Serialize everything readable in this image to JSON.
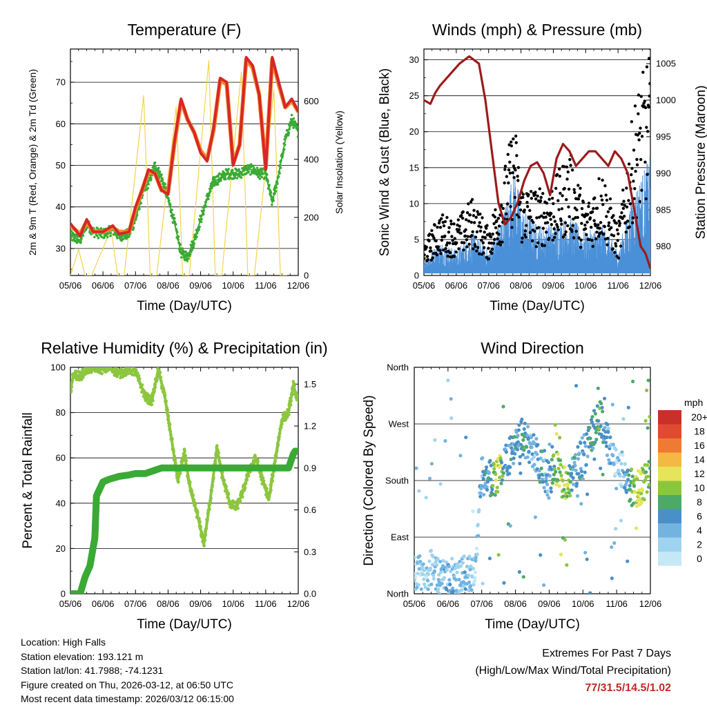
{
  "charts": {
    "temperature": {
      "title": "Temperature (F)",
      "xlabel": "Time (Day/UTC)",
      "ylabel_left": "2m & 9m T (Red, Orange) & 2m Td (Green)",
      "ylabel_right": "Solar Insolation (Yellow)"
    },
    "winds": {
      "title": "Winds (mph) & Pressure (mb)",
      "xlabel": "Time (Day/UTC)",
      "ylabel_left": "Sonic Wind & Gust (Blue, Black)",
      "ylabel_right": "Station Pressure (Maroon)"
    },
    "humidity": {
      "title": "Relative Humidity (%) & Precipitation (in)",
      "xlabel": "Time (Day/UTC)",
      "ylabel_left": "Percent & Total Rainfall"
    },
    "direction": {
      "title": "Wind Direction",
      "xlabel": "Time (Day/UTC)",
      "ylabel_left": "Direction (Colored By Speed)",
      "legend_title": "mph",
      "legend_labels": [
        "20+",
        "18",
        "16",
        "14",
        "12",
        "10",
        "8",
        "6",
        "4",
        "2",
        "0"
      ]
    }
  },
  "station": {
    "location": "Location: High Falls",
    "elevation": "Station elevation: 193.121 m",
    "latlon": "Station lat/lon: 41.7988; -74.1231",
    "created": "Figure created on Thu, 2026-03-12, at 06:50 UTC",
    "recent": "Most recent data timestamp: 2026/03/12 06:15:00"
  },
  "extremes": {
    "title": "Extremes For Past 7 Days",
    "subtitle": "(High/Low/Max Wind/Total Precipitation)",
    "values": "77/31.5/14.5/1.02"
  },
  "colors": {
    "temp_2m": "#d62728",
    "temp_9m": "#f28c28",
    "dewpoint": "#3aaa35",
    "solar": "#f5d34a",
    "wind": "#4a90d9",
    "gust": "#000000",
    "pressure": "#9b1b1b",
    "rh": "#8cc63f",
    "precip": "#3aaa35",
    "extremes": "#c62828"
  },
  "chart_data": [
    {
      "type": "line",
      "id": "temperature",
      "title": "Temperature (F)",
      "xlabel": "Time (Day/UTC)",
      "ylabel": "2m & 9m T (Red, Orange) & 2m Td (Green)",
      "y2label": "Solar Insolation (Yellow)",
      "x_tick_labels": [
        "05/06",
        "06/06",
        "07/06",
        "08/06",
        "09/06",
        "10/06",
        "11/06",
        "12/06"
      ],
      "xlim": [
        0,
        7
      ],
      "ylim": [
        23.5,
        78
      ],
      "yticks": [
        30,
        40,
        50,
        60,
        70
      ],
      "y2lim": [
        0,
        780
      ],
      "y2ticks": [
        0,
        200,
        400,
        600
      ],
      "series": [
        {
          "name": "2m T",
          "color": "#d62728",
          "x": [
            0,
            0.3,
            0.5,
            0.7,
            1,
            1.3,
            1.5,
            1.8,
            2.0,
            2.2,
            2.4,
            2.6,
            2.8,
            3.0,
            3.2,
            3.4,
            3.6,
            3.8,
            4.0,
            4.2,
            4.4,
            4.6,
            4.8,
            5.0,
            5.2,
            5.4,
            5.6,
            5.8,
            6.0,
            6.2,
            6.4,
            6.6,
            6.8,
            7.0
          ],
          "y": [
            36,
            33,
            37,
            34,
            34,
            35.5,
            33.5,
            34,
            40,
            44,
            49,
            48,
            44,
            43,
            56,
            66,
            61,
            58,
            53,
            51,
            59,
            71,
            70,
            50,
            55,
            76,
            74,
            67,
            49,
            76,
            70,
            64,
            66,
            63
          ]
        },
        {
          "name": "9m T",
          "color": "#f28c28",
          "x": [
            0,
            0.3,
            0.5,
            0.7,
            1,
            1.3,
            1.5,
            1.8,
            2.0,
            2.2,
            2.4,
            2.6,
            2.8,
            3.0,
            3.2,
            3.4,
            3.6,
            3.8,
            4.0,
            4.2,
            4.4,
            4.6,
            4.8,
            5.0,
            5.2,
            5.4,
            5.6,
            5.8,
            6.0,
            6.2,
            6.4,
            6.6,
            6.8,
            7.0
          ],
          "y": [
            35.5,
            33.5,
            36.5,
            34,
            34,
            35,
            34,
            34,
            39.5,
            44,
            48.5,
            48,
            44,
            43.5,
            55.5,
            65.5,
            61,
            58,
            53.5,
            51.5,
            58.5,
            70.5,
            69.5,
            50.5,
            55,
            75.5,
            73.5,
            67,
            49.5,
            75.5,
            69.5,
            64,
            65.5,
            63
          ]
        },
        {
          "name": "2m Td",
          "color": "#3aaa35",
          "x": [
            0,
            0.3,
            0.5,
            0.7,
            1,
            1.3,
            1.5,
            1.8,
            2.0,
            2.2,
            2.4,
            2.6,
            2.8,
            3.0,
            3.2,
            3.4,
            3.6,
            3.8,
            4.0,
            4.2,
            4.4,
            4.6,
            4.8,
            5.0,
            5.2,
            5.4,
            5.6,
            5.8,
            6.0,
            6.2,
            6.4,
            6.6,
            6.8,
            7.0
          ],
          "y": [
            33,
            32,
            36,
            34,
            33.5,
            34.5,
            33,
            33.5,
            37,
            43,
            46,
            50,
            47,
            42,
            36,
            29,
            28,
            32,
            37,
            42,
            46,
            47,
            48,
            48,
            48,
            49,
            49,
            48,
            48,
            41,
            48,
            56,
            61,
            58
          ]
        },
        {
          "name": "Solar Insolation",
          "axis": "right",
          "color": "#f5d34a",
          "x": [
            0,
            0.25,
            0.45,
            0.65,
            1.25,
            1.45,
            1.65,
            2.25,
            2.45,
            2.65,
            3.25,
            3.45,
            3.65,
            4.25,
            4.45,
            4.65,
            5.25,
            5.45,
            5.65,
            6.25,
            6.45,
            6.65
          ],
          "y": [
            0,
            90,
            0,
            0,
            160,
            0,
            0,
            620,
            0,
            0,
            580,
            0,
            0,
            740,
            0,
            0,
            700,
            0,
            0,
            640,
            0,
            0
          ]
        }
      ]
    },
    {
      "type": "scatter",
      "id": "winds",
      "title": "Winds (mph) & Pressure (mb)",
      "xlabel": "Time (Day/UTC)",
      "ylabel": "Sonic Wind & Gust (Blue, Black)",
      "y2label": "Station Pressure (Maroon)",
      "x_tick_labels": [
        "05/06",
        "06/06",
        "07/06",
        "08/06",
        "09/06",
        "10/06",
        "11/06",
        "12/06"
      ],
      "xlim": [
        0,
        7
      ],
      "ylim": [
        0,
        31.5
      ],
      "yticks": [
        0,
        5,
        10,
        15,
        20,
        25,
        30
      ],
      "y2lim": [
        976,
        1007
      ],
      "y2ticks": [
        980,
        985,
        990,
        995,
        1000,
        1005
      ],
      "series": [
        {
          "name": "Wind",
          "color": "#4a90d9",
          "x": [
            0,
            0.5,
            1,
            1.5,
            2,
            2.5,
            2.8,
            3,
            3.5,
            4,
            4.5,
            5,
            5.5,
            6,
            6.5,
            7
          ],
          "y": [
            2,
            4,
            3,
            5,
            3,
            8,
            13,
            8,
            6,
            6,
            7,
            5,
            6,
            3,
            10,
            14
          ]
        },
        {
          "name": "Gust",
          "color": "#000000",
          "x": [
            0,
            0.5,
            1,
            1.5,
            2,
            2.5,
            2.8,
            3,
            3.5,
            4,
            4.5,
            5,
            5.5,
            6,
            6.5,
            7
          ],
          "y": [
            4,
            8,
            7,
            10,
            6,
            14,
            20,
            12,
            11,
            12,
            16,
            9,
            14,
            6,
            22,
            29
          ]
        },
        {
          "name": "Station Pressure",
          "axis": "right",
          "color": "#9b1b1b",
          "x": [
            0,
            0.2,
            0.35,
            0.5,
            0.7,
            0.9,
            1.1,
            1.4,
            1.7,
            1.9,
            2.1,
            2.3,
            2.5,
            2.7,
            2.9,
            3.1,
            3.3,
            3.5,
            3.7,
            3.9,
            4.1,
            4.3,
            4.5,
            4.7,
            4.9,
            5.1,
            5.3,
            5.5,
            5.7,
            5.9,
            6.1,
            6.3,
            6.5,
            6.7,
            6.85,
            7.0
          ],
          "y": [
            1000,
            999.5,
            1001,
            1002,
            1003,
            1004,
            1005,
            1006,
            1005,
            1000,
            993,
            986,
            983,
            984,
            986,
            989,
            991,
            991.5,
            990,
            987,
            992,
            994,
            993,
            991,
            992,
            993,
            993,
            992,
            991,
            993,
            992,
            990,
            985,
            980,
            979,
            977
          ]
        }
      ]
    },
    {
      "type": "line",
      "id": "humidity",
      "title": "Relative Humidity (%) & Precipitation (in)",
      "xlabel": "Time (Day/UTC)",
      "ylabel": "Percent & Total Rainfall",
      "x_tick_labels": [
        "05/06",
        "06/06",
        "07/06",
        "08/06",
        "09/06",
        "10/06",
        "11/06",
        "12/06"
      ],
      "xlim": [
        0,
        7
      ],
      "ylim": [
        0,
        100
      ],
      "yticks": [
        0,
        20,
        40,
        60,
        80,
        100
      ],
      "y2lim": [
        0,
        1.62
      ],
      "y2ticks": [
        0.0,
        0.3,
        0.6,
        0.9,
        1.2,
        1.5
      ],
      "series": [
        {
          "name": "Relative Humidity",
          "color": "#8cc63f",
          "x": [
            0,
            0.1,
            0.3,
            0.5,
            0.8,
            1.0,
            1.2,
            1.5,
            1.8,
            2.0,
            2.3,
            2.5,
            2.7,
            2.9,
            3.1,
            3.3,
            3.5,
            3.7,
            3.9,
            4.1,
            4.3,
            4.5,
            4.7,
            4.9,
            5.1,
            5.3,
            5.5,
            5.7,
            5.9,
            6.1,
            6.3,
            6.5,
            6.7,
            6.85,
            7.0
          ],
          "y": [
            90,
            97,
            96,
            99,
            100,
            99,
            100,
            97,
            99,
            98,
            87,
            85,
            99,
            87,
            69,
            50,
            62,
            45,
            35,
            22,
            42,
            64,
            50,
            40,
            38,
            45,
            55,
            60,
            50,
            42,
            60,
            77,
            80,
            92,
            85
          ]
        },
        {
          "name": "Total Precipitation",
          "axis": "right",
          "color": "#3aaa35",
          "x": [
            0,
            0.3,
            0.45,
            0.6,
            0.75,
            0.8,
            0.9,
            1.0,
            1.2,
            1.5,
            1.8,
            2.0,
            2.3,
            2.8,
            3.5,
            4.0,
            5.0,
            6.0,
            6.7,
            6.85,
            6.9,
            7.0
          ],
          "y": [
            0,
            0,
            0.12,
            0.2,
            0.4,
            0.7,
            0.75,
            0.8,
            0.82,
            0.84,
            0.85,
            0.86,
            0.86,
            0.9,
            0.9,
            0.9,
            0.9,
            0.9,
            0.9,
            1.0,
            1.02,
            1.02
          ]
        }
      ]
    },
    {
      "type": "scatter",
      "id": "direction",
      "title": "Wind Direction",
      "xlabel": "Time (Day/UTC)",
      "ylabel": "Direction (Colored By Speed)",
      "x_tick_labels": [
        "05/06",
        "06/06",
        "07/06",
        "08/06",
        "09/06",
        "10/06",
        "11/06",
        "12/06"
      ],
      "xlim": [
        0,
        7
      ],
      "ylim": [
        0,
        360
      ],
      "y_tick_labels": [
        "North",
        "East",
        "South",
        "West",
        "North"
      ],
      "colorbar": {
        "label": "mph",
        "levels": [
          0,
          2,
          4,
          6,
          8,
          10,
          12,
          14,
          16,
          18,
          "20+"
        ]
      },
      "series": [
        {
          "name": "Direction",
          "x": [
            0.2,
            0.5,
            0.8,
            1.0,
            1.3,
            1.5,
            1.8,
            2.0,
            2.2,
            2.5,
            2.7,
            3.0,
            3.2,
            3.5,
            3.7,
            4.0,
            4.2,
            4.5,
            4.7,
            5.0,
            5.2,
            5.5,
            5.7,
            6.0,
            6.2,
            6.5,
            6.7,
            6.9
          ],
          "y": [
            30,
            40,
            25,
            30,
            20,
            35,
            30,
            200,
            180,
            190,
            210,
            230,
            250,
            230,
            210,
            180,
            200,
            170,
            190,
            220,
            250,
            280,
            250,
            200,
            200,
            160,
            170,
            180
          ],
          "speed": [
            2,
            3,
            3,
            4,
            3,
            4,
            2,
            4,
            6,
            11,
            5,
            6,
            7,
            4,
            6,
            4,
            10,
            11,
            6,
            5,
            6,
            8,
            5,
            2,
            3,
            10,
            12,
            8
          ]
        }
      ]
    }
  ]
}
